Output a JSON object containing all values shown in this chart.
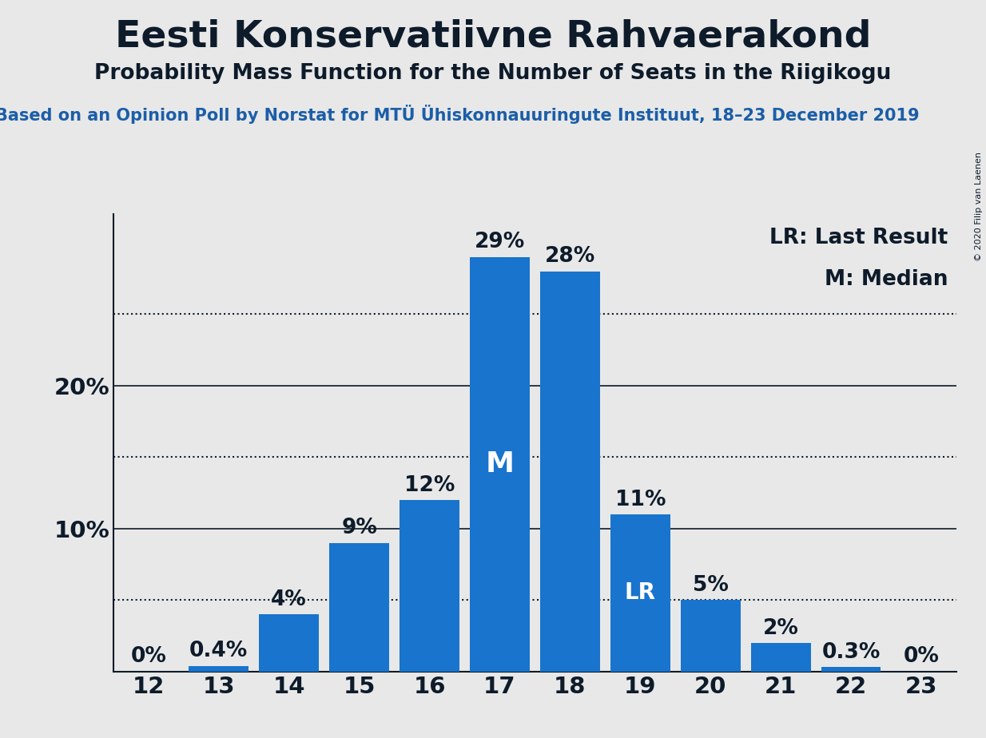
{
  "title": "Eesti Konservatiivne Rahvaerakond",
  "subtitle": "Probability Mass Function for the Number of Seats in the Riigikogu",
  "source_text": "Based on an Opinion Poll by Norstat for MTÜ Ühiskonnauuringute Instituut, 18–23 December 2019",
  "copyright": "© 2020 Filip van Laenen",
  "seats": [
    12,
    13,
    14,
    15,
    16,
    17,
    18,
    19,
    20,
    21,
    22,
    23
  ],
  "probabilities": [
    0.0,
    0.4,
    4.0,
    9.0,
    12.0,
    29.0,
    28.0,
    11.0,
    5.0,
    2.0,
    0.3,
    0.0
  ],
  "bar_color": "#1874CD",
  "median_seat": 17,
  "lr_seat": 19,
  "bg_color": "#E8E8E8",
  "text_color": "#0D1B2A",
  "axis_color": "#0D1B2A",
  "grid_color": "#0D1B2A",
  "title_fontsize": 34,
  "subtitle_fontsize": 19,
  "source_fontsize": 15,
  "tick_fontsize": 21,
  "bar_label_fontsize": 19,
  "legend_fontsize": 19,
  "ylim": [
    0,
    32
  ],
  "yticks": [
    0,
    10,
    20
  ],
  "ytick_labels": [
    "",
    "10%",
    "20%"
  ],
  "dotted_lines": [
    5,
    15,
    25
  ]
}
